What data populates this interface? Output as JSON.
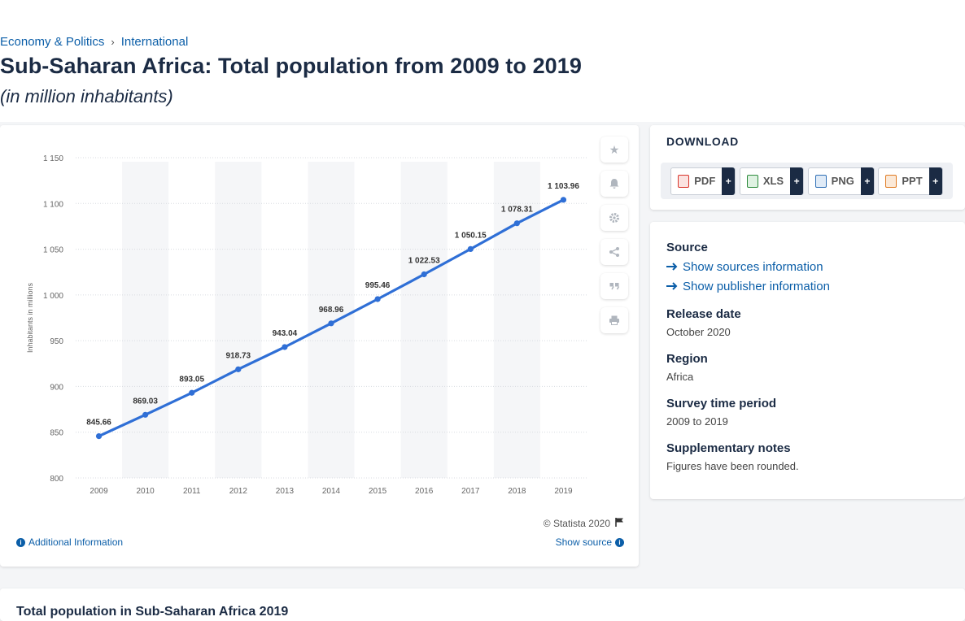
{
  "breadcrumb": [
    "Economy & Politics",
    "International"
  ],
  "page_title": "Sub-Saharan Africa: Total population from 2009 to 2019",
  "page_subtitle": "(in million inhabitants)",
  "chart_footer": {
    "copyright": "© Statista 2020",
    "additional_info": "Additional Information",
    "show_source": "Show source"
  },
  "download": {
    "title": "DOWNLOAD",
    "buttons": [
      {
        "label": "PDF",
        "color": "#d9342b"
      },
      {
        "label": "XLS",
        "color": "#2e8b3d"
      },
      {
        "label": "PNG",
        "color": "#2f6fb5"
      },
      {
        "label": "PPT",
        "color": "#e07b22"
      }
    ]
  },
  "meta": {
    "source_label": "Source",
    "show_sources": "Show sources information",
    "show_publisher": "Show publisher information",
    "release_label": "Release date",
    "release_value": "October 2020",
    "region_label": "Region",
    "region_value": "Africa",
    "period_label": "Survey time period",
    "period_value": "2009 to 2019",
    "notes_label": "Supplementary notes",
    "notes_value": "Figures have been rounded."
  },
  "bottom_title": "Total population in Sub-Saharan Africa 2019",
  "chart_data": {
    "type": "line",
    "x": [
      "2009",
      "2010",
      "2011",
      "2012",
      "2013",
      "2014",
      "2015",
      "2016",
      "2017",
      "2018",
      "2019"
    ],
    "series": [
      {
        "values": [
          845.66,
          869.03,
          893.05,
          918.73,
          943.04,
          968.96,
          995.46,
          1022.53,
          1050.15,
          1078.31,
          1103.96
        ]
      }
    ],
    "data_labels": [
      "845.66",
      "869.03",
      "893.05",
      "918.73",
      "943.04",
      "968.96",
      "995.46",
      "1 022.53",
      "1 050.15",
      "1 078.31",
      "1 103.96"
    ],
    "ylabel": "Inhabitants in millions",
    "ylim": [
      800,
      1150
    ],
    "yticks": [
      800,
      850,
      900,
      950,
      1000,
      1050,
      1100,
      1150
    ],
    "ytick_labels": [
      "800",
      "850",
      "900",
      "950",
      "1 000",
      "1 050",
      "1 100",
      "1 150"
    ],
    "line_color": "#2f6fd6",
    "grid": true
  }
}
